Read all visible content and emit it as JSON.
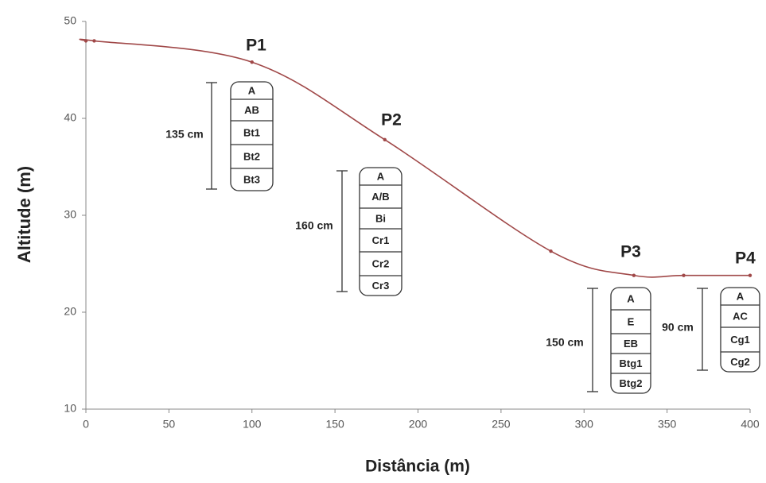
{
  "chart_data": {
    "type": "line",
    "x_label": "Distância (m)",
    "y_label": "Altitude (m)",
    "x": [
      0,
      5,
      100,
      180,
      280,
      330,
      360,
      400
    ],
    "values": [
      48,
      48,
      45.8,
      37.8,
      26.3,
      23.8,
      23.8,
      23.8
    ],
    "color": "#a04848",
    "xlim": [
      0,
      400
    ],
    "xticks": [
      0,
      50,
      100,
      150,
      200,
      250,
      300,
      350,
      400
    ],
    "ylim": [
      10,
      50
    ],
    "yticks": [
      10,
      20,
      30,
      40,
      50
    ],
    "grid": false,
    "profiles": [
      {
        "label": "P1",
        "depth": "135 cm",
        "horizons": [
          "A",
          "AB",
          "Bt1",
          "Bt2",
          "Bt3"
        ]
      },
      {
        "label": "P2",
        "depth": "160 cm",
        "horizons": [
          "A",
          "A/B",
          "Bi",
          "Cr1",
          "Cr2",
          "Cr3"
        ]
      },
      {
        "label": "P3",
        "depth": "150 cm",
        "horizons": [
          "A",
          "E",
          "EB",
          "Btg1",
          "Btg2"
        ]
      },
      {
        "label": "P4",
        "depth": "90 cm",
        "horizons": [
          "A",
          "AC",
          "Cg1",
          "Cg2"
        ]
      }
    ]
  }
}
